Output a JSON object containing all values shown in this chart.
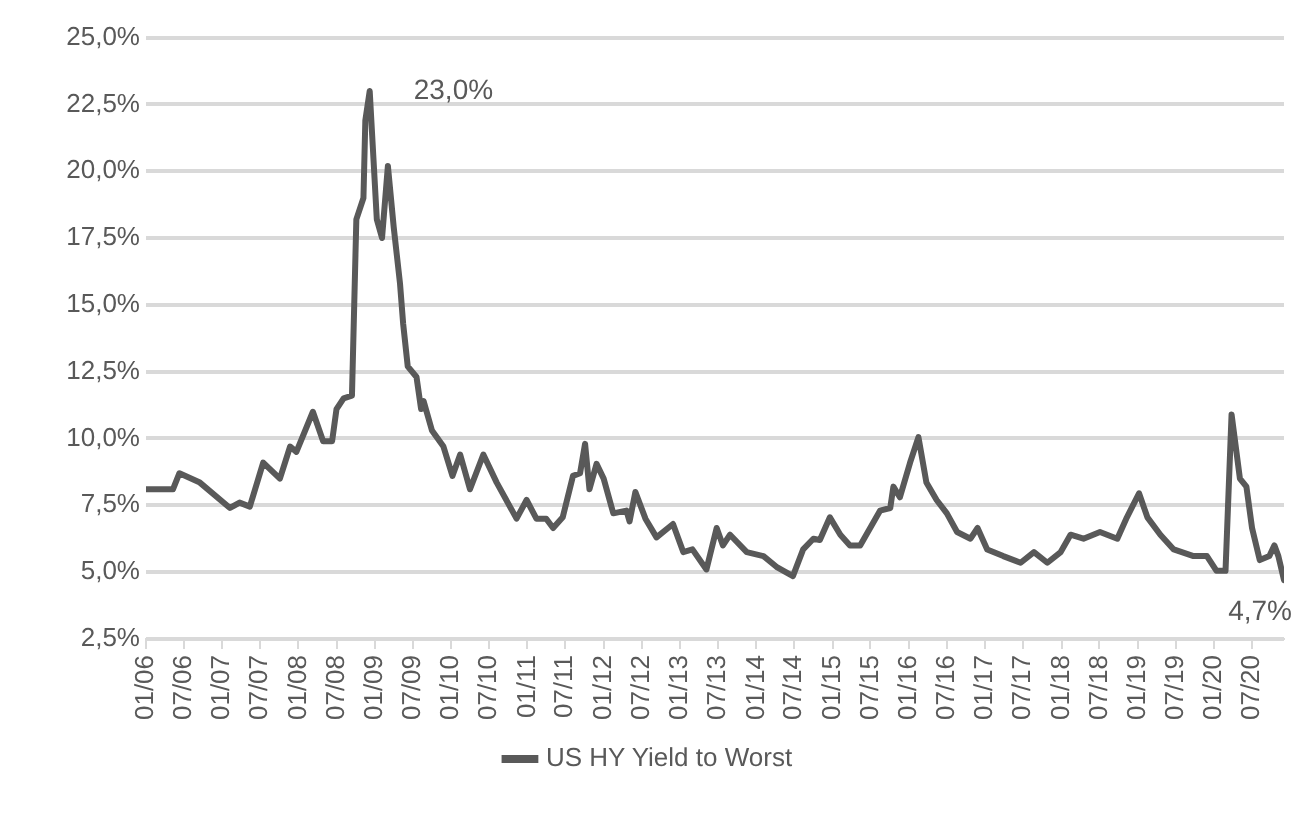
{
  "chart_data": {
    "type": "line",
    "xlim": [
      "2006-01-01",
      "2020-12-01"
    ],
    "xticks": [
      {
        "value": "2006-01-01",
        "label": "01/06"
      },
      {
        "value": "2006-07-01",
        "label": "07/06"
      },
      {
        "value": "2007-01-01",
        "label": "01/07"
      },
      {
        "value": "2007-07-01",
        "label": "07/07"
      },
      {
        "value": "2008-01-01",
        "label": "01/08"
      },
      {
        "value": "2008-07-01",
        "label": "07/08"
      },
      {
        "value": "2009-01-01",
        "label": "01/09"
      },
      {
        "value": "2009-07-01",
        "label": "07/09"
      },
      {
        "value": "2010-01-01",
        "label": "01/10"
      },
      {
        "value": "2010-07-01",
        "label": "07/10"
      },
      {
        "value": "2011-01-01",
        "label": "01/11"
      },
      {
        "value": "2011-07-01",
        "label": "07/11"
      },
      {
        "value": "2012-01-01",
        "label": "01/12"
      },
      {
        "value": "2012-07-01",
        "label": "07/12"
      },
      {
        "value": "2013-01-01",
        "label": "01/13"
      },
      {
        "value": "2013-07-01",
        "label": "07/13"
      },
      {
        "value": "2014-01-01",
        "label": "01/14"
      },
      {
        "value": "2014-07-01",
        "label": "07/14"
      },
      {
        "value": "2015-01-01",
        "label": "01/15"
      },
      {
        "value": "2015-07-01",
        "label": "07/15"
      },
      {
        "value": "2016-01-01",
        "label": "01/16"
      },
      {
        "value": "2016-07-01",
        "label": "07/16"
      },
      {
        "value": "2017-01-01",
        "label": "01/17"
      },
      {
        "value": "2017-07-01",
        "label": "07/17"
      },
      {
        "value": "2018-01-01",
        "label": "01/18"
      },
      {
        "value": "2018-07-01",
        "label": "07/18"
      },
      {
        "value": "2019-01-01",
        "label": "01/19"
      },
      {
        "value": "2019-07-01",
        "label": "07/19"
      },
      {
        "value": "2020-01-01",
        "label": "01/20"
      },
      {
        "value": "2020-07-01",
        "label": "07/20"
      }
    ],
    "ylim": [
      2.5,
      25
    ],
    "yticks": [
      {
        "value": 2.5,
        "label": "2,5%"
      },
      {
        "value": 5,
        "label": "5,0%"
      },
      {
        "value": 7.5,
        "label": "7,5%"
      },
      {
        "value": 10,
        "label": "10,0%"
      },
      {
        "value": 12.5,
        "label": "12,5%"
      },
      {
        "value": 15,
        "label": "15,0%"
      },
      {
        "value": 17.5,
        "label": "17,5%"
      },
      {
        "value": 20,
        "label": "20,0%"
      },
      {
        "value": 22.5,
        "label": "22,5%"
      },
      {
        "value": 25,
        "label": "25,0%"
      }
    ],
    "grid": "y",
    "legend": "bottom",
    "marker": "none",
    "line_style": "solid",
    "annotations": [
      {
        "text": "23,0%",
        "x": "2008-12-07",
        "y": 23.0
      },
      {
        "text": "4,7%",
        "x": "2020-12-01",
        "y": 4.7
      }
    ],
    "series": [
      {
        "name": "US HY Yield to Worst",
        "color": "#595959",
        "x": [
          "2006-01-01",
          "2006-05-10",
          "2006-06-10",
          "2006-09-16",
          "2007-02-07",
          "2007-03-25",
          "2007-05-13",
          "2007-07-16",
          "2007-10-04",
          "2007-11-22",
          "2007-12-22",
          "2008-03-10",
          "2008-04-28",
          "2008-06-10",
          "2008-07-01",
          "2008-08-04",
          "2008-09-13",
          "2008-10-04",
          "2008-11-07",
          "2008-11-16",
          "2008-12-07",
          "2009-01-10",
          "2009-02-04",
          "2009-03-04",
          "2009-04-01",
          "2009-05-01",
          "2009-05-16",
          "2009-06-07",
          "2009-07-19",
          "2009-08-10",
          "2009-08-22",
          "2009-10-01",
          "2009-11-25",
          "2010-01-07",
          "2010-02-13",
          "2010-04-01",
          "2010-06-04",
          "2010-08-07",
          "2010-11-10",
          "2010-12-28",
          "2011-02-13",
          "2011-04-01",
          "2011-05-04",
          "2011-06-19",
          "2011-08-07",
          "2011-09-10",
          "2011-10-04",
          "2011-10-25",
          "2011-11-28",
          "2012-01-01",
          "2012-02-16",
          "2012-04-19",
          "2012-05-04",
          "2012-06-01",
          "2012-07-19",
          "2012-09-10",
          "2012-11-28",
          "2013-01-16",
          "2013-03-01",
          "2013-05-07",
          "2013-06-25",
          "2013-07-25",
          "2013-08-28",
          "2013-11-16",
          "2014-02-04",
          "2014-04-07",
          "2014-06-25",
          "2014-08-13",
          "2014-10-01",
          "2014-11-01",
          "2014-12-19",
          "2015-02-07",
          "2015-03-25",
          "2015-05-13",
          "2015-08-16",
          "2015-10-04",
          "2015-10-19",
          "2015-11-19",
          "2016-01-07",
          "2016-02-16",
          "2016-03-25",
          "2016-05-13",
          "2016-07-01",
          "2016-08-19",
          "2016-10-22",
          "2016-11-25",
          "2017-01-10",
          "2017-03-28",
          "2017-06-19",
          "2017-08-22",
          "2017-10-25",
          "2017-12-28",
          "2018-02-13",
          "2018-04-16",
          "2018-07-04",
          "2018-09-25",
          "2018-11-10",
          "2019-01-07",
          "2019-02-16",
          "2019-04-19",
          "2019-06-22",
          "2019-09-25",
          "2019-11-28",
          "2020-01-13",
          "2020-02-25",
          "2020-03-25",
          "2020-05-04",
          "2020-06-04",
          "2020-07-01",
          "2020-08-07",
          "2020-09-22",
          "2020-10-16",
          "2020-11-04",
          "2020-12-01"
        ],
        "values": [
          8.1,
          8.1,
          8.7,
          8.35,
          7.4,
          7.6,
          7.45,
          9.1,
          8.5,
          9.7,
          9.5,
          11.0,
          9.9,
          9.9,
          11.1,
          11.5,
          11.6,
          18.2,
          19.0,
          21.9,
          23.0,
          18.2,
          17.5,
          20.2,
          17.9,
          15.8,
          14.3,
          12.7,
          12.3,
          11.1,
          11.4,
          10.3,
          9.7,
          8.6,
          9.4,
          8.1,
          9.4,
          8.35,
          7.0,
          7.7,
          7.0,
          7.0,
          6.65,
          7.05,
          8.6,
          8.7,
          9.8,
          8.1,
          9.05,
          8.5,
          7.2,
          7.3,
          6.9,
          8.0,
          7.0,
          6.3,
          6.8,
          5.75,
          5.85,
          5.1,
          6.65,
          6.0,
          6.4,
          5.75,
          5.6,
          5.2,
          4.85,
          5.85,
          6.25,
          6.2,
          7.05,
          6.4,
          6.0,
          6.0,
          7.3,
          7.4,
          8.2,
          7.8,
          9.1,
          10.05,
          8.35,
          7.7,
          7.2,
          6.5,
          6.25,
          6.65,
          5.85,
          5.6,
          5.35,
          5.75,
          5.35,
          5.75,
          6.4,
          6.25,
          6.5,
          6.25,
          7.05,
          7.95,
          7.05,
          6.4,
          5.85,
          5.6,
          5.6,
          5.05,
          5.05,
          10.9,
          8.5,
          8.2,
          6.65,
          5.45,
          5.6,
          6.0,
          5.6,
          4.7
        ]
      }
    ]
  }
}
